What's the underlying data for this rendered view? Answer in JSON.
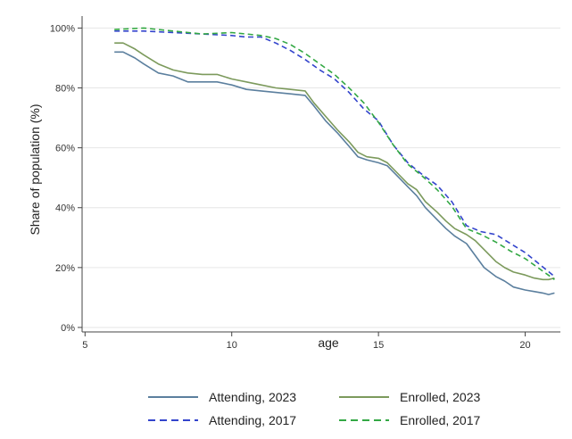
{
  "chart_data": {
    "type": "line",
    "xlabel": "age",
    "ylabel": "Share of population (%)",
    "xlim": [
      4.9,
      21.2
    ],
    "ylim": [
      -1.5,
      104
    ],
    "x_ticks": [
      5,
      10,
      15,
      20
    ],
    "x_tick_labels": [
      "5",
      "10",
      "15",
      "20"
    ],
    "y_ticks": [
      0,
      20,
      40,
      60,
      80,
      100
    ],
    "y_tick_labels": [
      "0%",
      "20%",
      "40%",
      "60%",
      "80%",
      "100%"
    ],
    "grid": "horizontal",
    "legend_position": "bottom",
    "series": [
      {
        "name": "Attending, 2023",
        "color": "#5b7f9e",
        "dash": "solid",
        "x": [
          6,
          6.3,
          6.7,
          7,
          7.5,
          8,
          8.5,
          9,
          9.5,
          10,
          10.5,
          11,
          11.5,
          12,
          12.5,
          12.8,
          13.2,
          13.6,
          14,
          14.3,
          14.6,
          15,
          15.3,
          15.6,
          16,
          16.3,
          16.6,
          17,
          17.3,
          17.6,
          18,
          18.3,
          18.6,
          19,
          19.3,
          19.6,
          20,
          20.3,
          20.6,
          20.8,
          21
        ],
        "y": [
          92,
          92,
          90,
          88,
          85,
          84,
          82,
          82,
          82,
          81,
          79.5,
          79,
          78.5,
          78,
          77.5,
          74,
          69,
          65,
          60.5,
          57,
          56,
          55,
          54,
          51,
          47,
          44,
          40,
          36,
          33,
          30.5,
          28,
          24,
          20,
          17,
          15.5,
          13.5,
          12.5,
          12,
          11.5,
          11,
          11.5
        ]
      },
      {
        "name": "Enrolled, 2023",
        "color": "#7c9a5c",
        "dash": "solid",
        "x": [
          6,
          6.3,
          6.7,
          7,
          7.5,
          8,
          8.5,
          9,
          9.5,
          10,
          10.5,
          11,
          11.5,
          12,
          12.5,
          12.8,
          13.2,
          13.6,
          14,
          14.3,
          14.6,
          15,
          15.3,
          15.6,
          16,
          16.3,
          16.6,
          17,
          17.3,
          17.6,
          18,
          18.3,
          18.6,
          19,
          19.3,
          19.6,
          20,
          20.3,
          20.6,
          20.8,
          21
        ],
        "y": [
          95,
          95,
          93,
          91,
          88,
          86,
          85,
          84.5,
          84.5,
          83,
          82,
          81,
          80,
          79.5,
          79,
          75,
          70.5,
          66,
          62,
          58.5,
          57,
          56.5,
          55,
          52,
          48,
          46,
          42,
          38.5,
          35.5,
          33,
          31,
          29,
          26,
          22,
          20,
          18.5,
          17.5,
          16.5,
          16,
          16,
          16.5
        ]
      },
      {
        "name": "Attending, 2017",
        "color": "#3344cc",
        "dash": "dashed",
        "x": [
          6,
          7,
          8,
          9,
          10,
          10.5,
          11,
          11.5,
          12,
          12.5,
          13,
          13.5,
          14,
          14.5,
          15,
          15.5,
          16,
          16.5,
          17,
          17.5,
          18,
          18.5,
          19,
          19.5,
          20,
          20.5,
          21
        ],
        "y": [
          99,
          99,
          98.5,
          98,
          97.5,
          97,
          97,
          95,
          92.5,
          89.5,
          86,
          83,
          78.5,
          73,
          69,
          61,
          55,
          51,
          47.5,
          42,
          34,
          32,
          31,
          28,
          25,
          21,
          17
        ]
      },
      {
        "name": "Enrolled, 2017",
        "color": "#33a844",
        "dash": "dashed",
        "x": [
          6,
          7,
          8,
          9,
          10,
          10.5,
          11,
          11.5,
          12,
          12.5,
          13,
          13.5,
          14,
          14.5,
          15,
          15.5,
          16,
          16.5,
          17,
          17.5,
          18,
          18.5,
          19,
          19.5,
          20,
          20.5,
          21
        ],
        "y": [
          99.5,
          100,
          99,
          98,
          98.5,
          98,
          97.5,
          96.5,
          94.5,
          91.5,
          88,
          84.5,
          80,
          75,
          68.5,
          61,
          54.5,
          50.5,
          46,
          40.5,
          33,
          31,
          28.5,
          25.5,
          23,
          19.5,
          16
        ]
      }
    ]
  }
}
